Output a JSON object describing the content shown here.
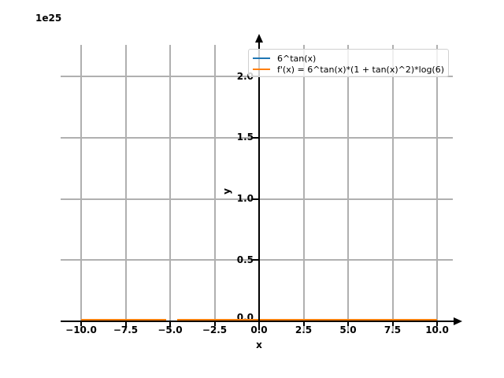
{
  "figure": {
    "offset_text": "1e25",
    "background": "#ffffff"
  },
  "chart_data": {
    "type": "line",
    "title": "",
    "xlabel": "x",
    "ylabel": "y",
    "y_offset_text": "1e25",
    "xlim": [
      -11,
      11
    ],
    "ylim": [
      -0.11,
      2.25
    ],
    "y_units": "1e25",
    "grid": true,
    "grid_color": "#b0b0b0",
    "axis_color": "#000000",
    "legend_position": "upper right",
    "xticks": {
      "values": [
        -10,
        -7.5,
        -5,
        -2.5,
        0,
        2.5,
        5,
        7.5,
        10
      ],
      "labels": [
        "−10.0",
        "−7.5",
        "−5.0",
        "−2.5",
        "0.0",
        "2.5",
        "5.0",
        "7.5",
        "10.0"
      ]
    },
    "yticks": {
      "values": [
        0,
        0.5,
        1,
        1.5,
        2
      ],
      "labels": [
        "0.0",
        "0.5",
        "1.0",
        "1.5",
        "2.0"
      ]
    },
    "series": [
      {
        "name": "6^tan(x)",
        "color": "#1f77b4",
        "segments": [
          {
            "x": [
              -10,
              -5.2
            ],
            "y": [
              0,
              0
            ]
          },
          {
            "x": [
              -4.6,
              10
            ],
            "y": [
              0,
              0
            ]
          }
        ]
      },
      {
        "name": "f'(x) = 6^tan(x)*(1 + tan(x)^2)*log(6)",
        "color": "#ff7f0e",
        "segments": [
          {
            "x": [
              -10,
              -5.2
            ],
            "y": [
              0,
              0
            ]
          },
          {
            "x": [
              -4.6,
              10
            ],
            "y": [
              0,
              0
            ]
          }
        ]
      }
    ]
  }
}
